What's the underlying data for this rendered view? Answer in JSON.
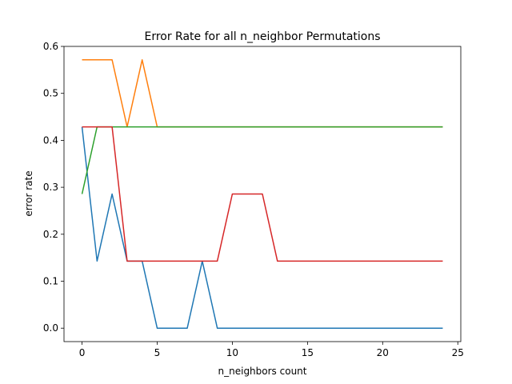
{
  "chart_data": {
    "type": "line",
    "title": "Error Rate for all n_neighbor Permutations",
    "xlabel": "n_neighbors count",
    "ylabel": "error rate",
    "xlim": [
      -1.2,
      25.2
    ],
    "ylim": [
      -0.0286,
      0.6
    ],
    "xticks": [
      0,
      5,
      10,
      15,
      20,
      25
    ],
    "yticks": [
      0.0,
      0.1,
      0.2,
      0.3,
      0.4,
      0.5,
      0.6
    ],
    "ytick_labels": [
      "0.0",
      "0.1",
      "0.2",
      "0.3",
      "0.4",
      "0.5",
      "0.6"
    ],
    "grid": false,
    "x": [
      0,
      1,
      2,
      3,
      4,
      5,
      6,
      7,
      8,
      9,
      10,
      11,
      12,
      13,
      14,
      15,
      16,
      17,
      18,
      19,
      20,
      21,
      22,
      23,
      24
    ],
    "series": [
      {
        "color": "#1f77b4",
        "values": [
          0.4286,
          0.1429,
          0.2857,
          0.1429,
          0.1429,
          0,
          0,
          0,
          0.1429,
          0,
          0,
          0,
          0,
          0,
          0,
          0,
          0,
          0,
          0,
          0,
          0,
          0,
          0,
          0,
          0
        ]
      },
      {
        "color": "#ff7f0e",
        "values": [
          0.5714,
          0.5714,
          0.5714,
          0.4286,
          0.5714,
          0.4286,
          0.4286,
          0.4286,
          0.4286,
          0.4286,
          0.4286,
          0.4286,
          0.4286,
          0.4286,
          0.4286,
          0.4286,
          0.4286,
          0.4286,
          0.4286,
          0.4286,
          0.4286,
          0.4286,
          0.4286,
          0.4286,
          0.4286
        ]
      },
      {
        "color": "#2ca02c",
        "values": [
          0.2857,
          0.4286,
          0.4286,
          0.4286,
          0.4286,
          0.4286,
          0.4286,
          0.4286,
          0.4286,
          0.4286,
          0.4286,
          0.4286,
          0.4286,
          0.4286,
          0.4286,
          0.4286,
          0.4286,
          0.4286,
          0.4286,
          0.4286,
          0.4286,
          0.4286,
          0.4286,
          0.4286,
          0.4286
        ]
      },
      {
        "color": "#d62728",
        "values": [
          0.4286,
          0.4286,
          0.4286,
          0.1429,
          0.1429,
          0.1429,
          0.1429,
          0.1429,
          0.1429,
          0.1429,
          0.2857,
          0.2857,
          0.2857,
          0.1429,
          0.1429,
          0.1429,
          0.1429,
          0.1429,
          0.1429,
          0.1429,
          0.1429,
          0.1429,
          0.1429,
          0.1429,
          0.1429
        ]
      }
    ]
  }
}
